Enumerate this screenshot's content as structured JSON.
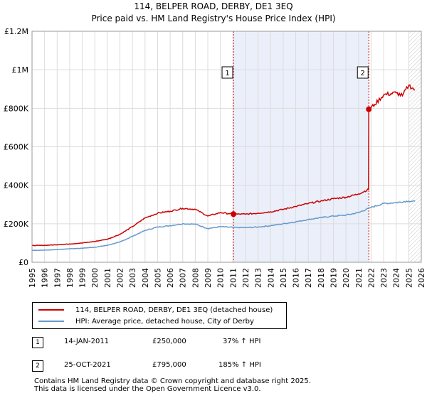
{
  "title_line1": "114, BELPER ROAD, DERBY, DE1 3EQ",
  "title_line2": "Price paid vs. HM Land Registry's House Price Index (HPI)",
  "chart_data": {
    "type": "line",
    "xlim": [
      1995,
      2026
    ],
    "ylim": [
      0,
      1200000
    ],
    "yticks": [
      0,
      200000,
      400000,
      600000,
      800000,
      1000000,
      1200000
    ],
    "ytick_labels": [
      "£0",
      "£200K",
      "£400K",
      "£600K",
      "£800K",
      "£1M",
      "£1.2M"
    ],
    "xticks": [
      "1995",
      "1996",
      "1997",
      "1998",
      "1999",
      "2000",
      "2001",
      "2002",
      "2003",
      "2004",
      "2005",
      "2006",
      "2007",
      "2008",
      "2009",
      "2010",
      "2011",
      "2012",
      "2013",
      "2014",
      "2015",
      "2016",
      "2017",
      "2018",
      "2019",
      "2020",
      "2021",
      "2022",
      "2023",
      "2024",
      "2025",
      "2026"
    ],
    "grid": true,
    "shaded_span": [
      2011.04,
      2021.82
    ],
    "data_end_year": 2025.0,
    "series": [
      {
        "name": "114, BELPER ROAD, DERBY, DE1 3EQ (detached house)",
        "color": "#cc0000",
        "points": [
          [
            1995,
            87000
          ],
          [
            1996,
            88000
          ],
          [
            1997,
            91000
          ],
          [
            1998,
            95000
          ],
          [
            1999,
            100000
          ],
          [
            2000,
            108000
          ],
          [
            2001,
            120000
          ],
          [
            2002,
            145000
          ],
          [
            2003,
            185000
          ],
          [
            2004,
            230000
          ],
          [
            2005,
            255000
          ],
          [
            2006,
            265000
          ],
          [
            2007,
            280000
          ],
          [
            2008,
            275000
          ],
          [
            2009,
            240000
          ],
          [
            2010,
            258000
          ],
          [
            2011.04,
            250000
          ],
          [
            2012,
            250000
          ],
          [
            2013,
            255000
          ],
          [
            2014,
            262000
          ],
          [
            2015,
            275000
          ],
          [
            2016,
            290000
          ],
          [
            2017,
            305000
          ],
          [
            2018,
            318000
          ],
          [
            2019,
            330000
          ],
          [
            2020,
            338000
          ],
          [
            2021,
            355000
          ],
          [
            2021.8,
            378000
          ],
          [
            2021.82,
            795000
          ],
          [
            2022.3,
            820000
          ],
          [
            2023,
            870000
          ],
          [
            2024,
            880000
          ],
          [
            2024.5,
            865000
          ],
          [
            2025,
            920000
          ],
          [
            2025.5,
            895000
          ]
        ]
      },
      {
        "name": "HPI: Average price, detached house, City of Derby",
        "color": "#6699cc",
        "points": [
          [
            1995,
            62000
          ],
          [
            1996,
            63000
          ],
          [
            1997,
            66000
          ],
          [
            1998,
            70000
          ],
          [
            1999,
            73000
          ],
          [
            2000,
            78000
          ],
          [
            2001,
            88000
          ],
          [
            2002,
            105000
          ],
          [
            2003,
            135000
          ],
          [
            2004,
            165000
          ],
          [
            2005,
            183000
          ],
          [
            2006,
            190000
          ],
          [
            2007,
            200000
          ],
          [
            2008,
            198000
          ],
          [
            2009,
            175000
          ],
          [
            2010,
            185000
          ],
          [
            2011,
            181000
          ],
          [
            2012,
            180000
          ],
          [
            2013,
            183000
          ],
          [
            2014,
            190000
          ],
          [
            2015,
            200000
          ],
          [
            2016,
            210000
          ],
          [
            2017,
            222000
          ],
          [
            2018,
            232000
          ],
          [
            2019,
            240000
          ],
          [
            2020,
            245000
          ],
          [
            2021,
            258000
          ],
          [
            2022,
            285000
          ],
          [
            2023,
            305000
          ],
          [
            2024,
            310000
          ],
          [
            2025,
            318000
          ],
          [
            2025.5,
            316000
          ]
        ]
      }
    ],
    "markers": [
      {
        "label": "1",
        "x": 2011.04,
        "y": 250000
      },
      {
        "label": "2",
        "x": 2021.82,
        "y": 795000
      }
    ]
  },
  "transactions": [
    {
      "id": "1",
      "date": "14-JAN-2011",
      "price": "£250,000",
      "hpi": "37% ↑ HPI"
    },
    {
      "id": "2",
      "date": "25-OCT-2021",
      "price": "£795,000",
      "hpi": "185% ↑ HPI"
    }
  ],
  "footer_line1": "Contains HM Land Registry data © Crown copyright and database right 2025.",
  "footer_line2": "This data is licensed under the Open Government Licence v3.0."
}
